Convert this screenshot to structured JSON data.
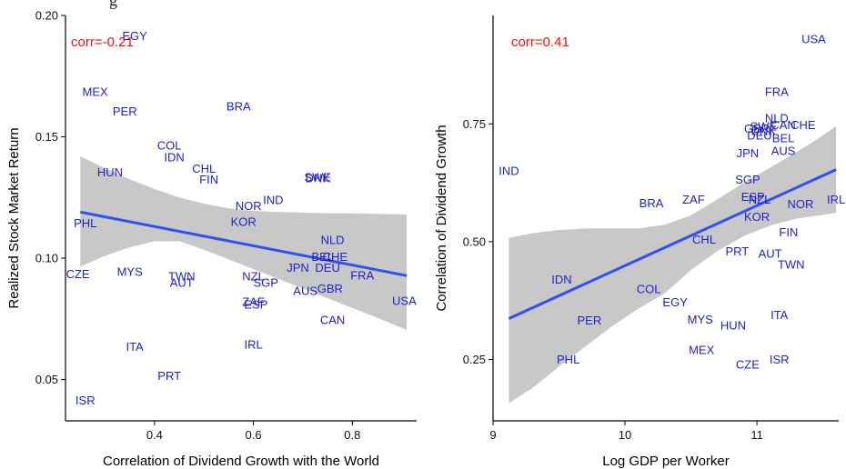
{
  "page": {
    "title_fragment": "g"
  },
  "chart_data": [
    {
      "type": "scatter",
      "xlabel": "Correlation of Dividend Growth with the World",
      "ylabel": "Realized Stock Market Return",
      "xlim": [
        0.22,
        0.93
      ],
      "ylim": [
        0.033,
        0.2
      ],
      "xticks": [
        0.4,
        0.6,
        0.8
      ],
      "xtick_labels": [
        "0.4",
        "0.6",
        "0.8"
      ],
      "yticks": [
        0.05,
        0.1,
        0.15,
        0.2
      ],
      "ytick_labels": [
        "0.05",
        "0.10",
        "0.15",
        "0.20"
      ],
      "annotation": "corr=-0.21",
      "fit_line": {
        "x": [
          0.25,
          0.91
        ],
        "y": [
          0.119,
          0.0928
        ]
      },
      "confidence_band": {
        "x": [
          0.25,
          0.3,
          0.35,
          0.4,
          0.45,
          0.5,
          0.55,
          0.6,
          0.65,
          0.7,
          0.75,
          0.8,
          0.85,
          0.91
        ],
        "upper": [
          0.142,
          0.137,
          0.1325,
          0.1285,
          0.125,
          0.1225,
          0.1205,
          0.1195,
          0.119,
          0.1188,
          0.1185,
          0.1185,
          0.1183,
          0.118
        ],
        "lower": [
          0.0965,
          0.101,
          0.1045,
          0.107,
          0.107,
          0.1035,
          0.0995,
          0.0955,
          0.0915,
          0.0875,
          0.0835,
          0.0795,
          0.0755,
          0.0705
        ]
      },
      "points": [
        {
          "label": "EGY",
          "x": 0.36,
          "y": 0.1915
        },
        {
          "label": "MEX",
          "x": 0.28,
          "y": 0.1685
        },
        {
          "label": "PER",
          "x": 0.34,
          "y": 0.1605
        },
        {
          "label": "BRA",
          "x": 0.57,
          "y": 0.1625
        },
        {
          "label": "COL",
          "x": 0.43,
          "y": 0.1465
        },
        {
          "label": "IDN",
          "x": 0.44,
          "y": 0.1415
        },
        {
          "label": "HUN",
          "x": 0.31,
          "y": 0.1355
        },
        {
          "label": "CHL",
          "x": 0.5,
          "y": 0.137
        },
        {
          "label": "FIN",
          "x": 0.51,
          "y": 0.1325
        },
        {
          "label": "DNK",
          "x": 0.73,
          "y": 0.133
        },
        {
          "label": "SWE",
          "x": 0.73,
          "y": 0.1333
        },
        {
          "label": "IND",
          "x": 0.64,
          "y": 0.124
        },
        {
          "label": "NOR",
          "x": 0.59,
          "y": 0.1215
        },
        {
          "label": "KOR",
          "x": 0.58,
          "y": 0.115
        },
        {
          "label": "PHL",
          "x": 0.26,
          "y": 0.1145
        },
        {
          "label": "NLD",
          "x": 0.76,
          "y": 0.1075
        },
        {
          "label": "BEL",
          "x": 0.74,
          "y": 0.1005
        },
        {
          "label": "CHE",
          "x": 0.765,
          "y": 0.1005
        },
        {
          "label": "DEU",
          "x": 0.75,
          "y": 0.096
        },
        {
          "label": "JPN",
          "x": 0.69,
          "y": 0.096
        },
        {
          "label": "CZE",
          "x": 0.245,
          "y": 0.0935
        },
        {
          "label": "MYS",
          "x": 0.35,
          "y": 0.0945
        },
        {
          "label": "TWN",
          "x": 0.455,
          "y": 0.0925
        },
        {
          "label": "AUT",
          "x": 0.455,
          "y": 0.09
        },
        {
          "label": "NZL",
          "x": 0.6,
          "y": 0.0925
        },
        {
          "label": "SGP",
          "x": 0.625,
          "y": 0.09
        },
        {
          "label": "FRA",
          "x": 0.82,
          "y": 0.093
        },
        {
          "label": "GBR",
          "x": 0.755,
          "y": 0.0875
        },
        {
          "label": "AUS",
          "x": 0.705,
          "y": 0.0865
        },
        {
          "label": "ZAF",
          "x": 0.6,
          "y": 0.082
        },
        {
          "label": "ESP",
          "x": 0.605,
          "y": 0.081
        },
        {
          "label": "USA",
          "x": 0.905,
          "y": 0.0825
        },
        {
          "label": "CAN",
          "x": 0.76,
          "y": 0.0745
        },
        {
          "label": "ITA",
          "x": 0.36,
          "y": 0.0635
        },
        {
          "label": "IRL",
          "x": 0.6,
          "y": 0.0645
        },
        {
          "label": "PRT",
          "x": 0.43,
          "y": 0.0515
        },
        {
          "label": "ISR",
          "x": 0.26,
          "y": 0.0415
        }
      ]
    },
    {
      "type": "scatter",
      "xlabel": "Log GDP per Worker",
      "ylabel": "Correlation of Dividend Growth",
      "xlim": [
        9.0,
        11.62
      ],
      "ylim": [
        0.12,
        0.98
      ],
      "xticks": [
        9,
        10,
        11
      ],
      "xtick_labels": [
        "9",
        "10",
        "11"
      ],
      "yticks": [
        0.25,
        0.5,
        0.75
      ],
      "ytick_labels": [
        "0.25",
        "0.50",
        "0.75"
      ],
      "annotation": "corr=0.41",
      "fit_line": {
        "x": [
          9.12,
          11.6
        ],
        "y": [
          0.337,
          0.653
        ]
      },
      "confidence_band": {
        "x": [
          9.12,
          9.3,
          9.5,
          9.7,
          9.9,
          10.1,
          10.3,
          10.5,
          10.7,
          10.9,
          11.1,
          11.3,
          11.45,
          11.6
        ],
        "upper": [
          0.508,
          0.518,
          0.525,
          0.528,
          0.528,
          0.528,
          0.536,
          0.556,
          0.59,
          0.625,
          0.657,
          0.69,
          0.716,
          0.745
        ],
        "lower": [
          0.157,
          0.19,
          0.235,
          0.278,
          0.32,
          0.358,
          0.39,
          0.44,
          0.48,
          0.512,
          0.534,
          0.549,
          0.555,
          0.561
        ]
      },
      "points": [
        {
          "label": "USA",
          "x": 11.43,
          "y": 0.93
        },
        {
          "label": "FRA",
          "x": 11.15,
          "y": 0.818
        },
        {
          "label": "NLD",
          "x": 11.15,
          "y": 0.762
        },
        {
          "label": "CHE",
          "x": 11.35,
          "y": 0.748
        },
        {
          "label": "CAN",
          "x": 11.2,
          "y": 0.748
        },
        {
          "label": "SWE",
          "x": 11.05,
          "y": 0.745
        },
        {
          "label": "GBR",
          "x": 11.0,
          "y": 0.74
        },
        {
          "label": "DNK",
          "x": 11.05,
          "y": 0.735
        },
        {
          "label": "DEU",
          "x": 11.02,
          "y": 0.725
        },
        {
          "label": "BEL",
          "x": 11.2,
          "y": 0.72
        },
        {
          "label": "AUS",
          "x": 11.2,
          "y": 0.693
        },
        {
          "label": "JPN",
          "x": 10.93,
          "y": 0.688
        },
        {
          "label": "IND",
          "x": 9.12,
          "y": 0.65
        },
        {
          "label": "SGP",
          "x": 10.93,
          "y": 0.632
        },
        {
          "label": "ESP",
          "x": 10.97,
          "y": 0.595
        },
        {
          "label": "NZL",
          "x": 11.02,
          "y": 0.59
        },
        {
          "label": "IRL",
          "x": 11.6,
          "y": 0.59
        },
        {
          "label": "BRA",
          "x": 10.2,
          "y": 0.582
        },
        {
          "label": "ZAF",
          "x": 10.52,
          "y": 0.59
        },
        {
          "label": "NOR",
          "x": 11.33,
          "y": 0.58
        },
        {
          "label": "KOR",
          "x": 11.0,
          "y": 0.553
        },
        {
          "label": "FIN",
          "x": 11.24,
          "y": 0.52
        },
        {
          "label": "CHL",
          "x": 10.6,
          "y": 0.505
        },
        {
          "label": "PRT",
          "x": 10.85,
          "y": 0.48
        },
        {
          "label": "AUT",
          "x": 11.1,
          "y": 0.475
        },
        {
          "label": "TWN",
          "x": 11.26,
          "y": 0.452
        },
        {
          "label": "IDN",
          "x": 9.52,
          "y": 0.42
        },
        {
          "label": "COL",
          "x": 10.18,
          "y": 0.4
        },
        {
          "label": "EGY",
          "x": 10.38,
          "y": 0.372
        },
        {
          "label": "ITA",
          "x": 11.17,
          "y": 0.345
        },
        {
          "label": "PER",
          "x": 9.73,
          "y": 0.333
        },
        {
          "label": "MYS",
          "x": 10.57,
          "y": 0.335
        },
        {
          "label": "HUN",
          "x": 10.82,
          "y": 0.322
        },
        {
          "label": "MEX",
          "x": 10.58,
          "y": 0.27
        },
        {
          "label": "PHL",
          "x": 9.57,
          "y": 0.25
        },
        {
          "label": "ISR",
          "x": 11.17,
          "y": 0.25
        },
        {
          "label": "CZE",
          "x": 10.93,
          "y": 0.24
        }
      ]
    }
  ]
}
